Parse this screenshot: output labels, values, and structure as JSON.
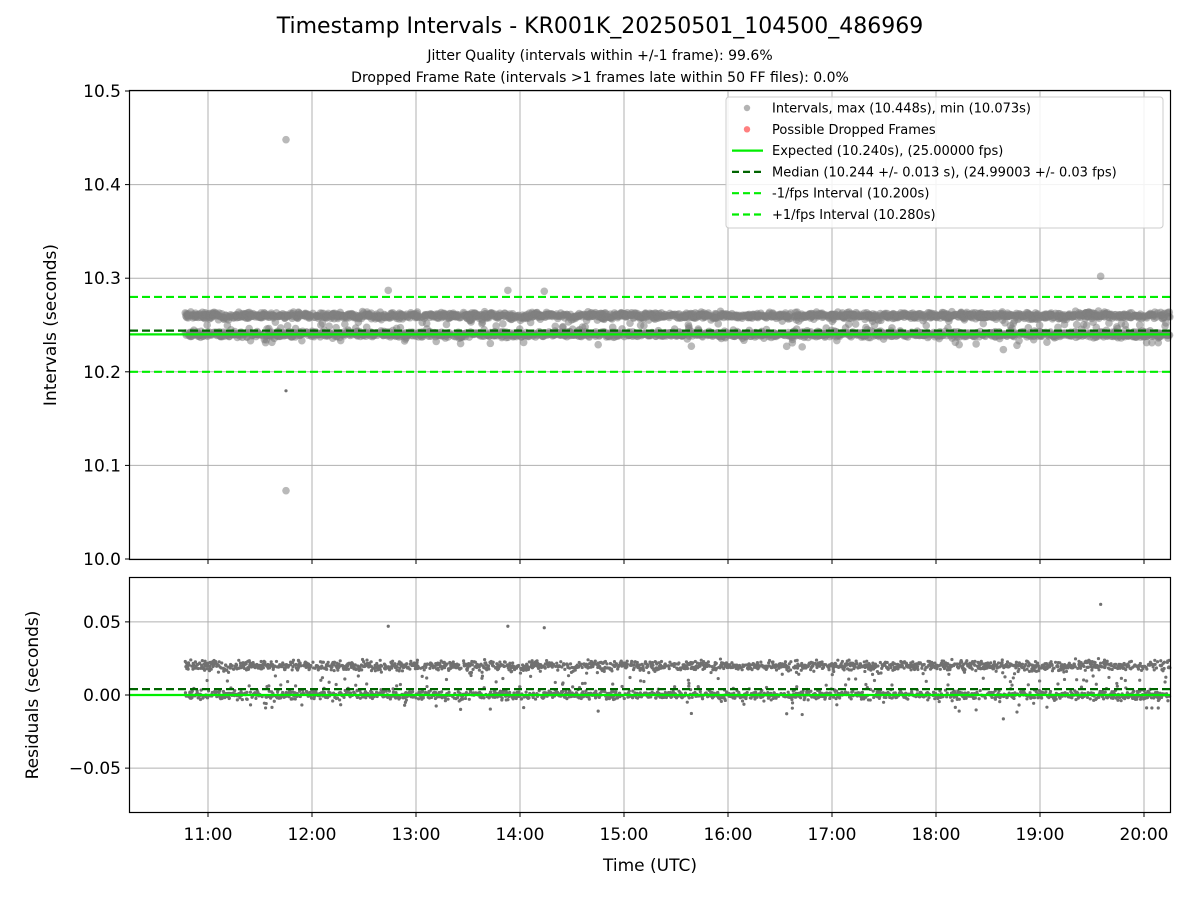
{
  "chart_data": [
    {
      "type": "scatter",
      "title": "Timestamp Intervals - KR001K_20250501_104500_486969",
      "subtitle_lines": [
        "Jitter Quality (intervals within +/-1 frame): 99.6%",
        "Dropped Frame Rate (intervals >1 frames late within 50 FF files): 0.0%"
      ],
      "xlabel": "",
      "ylabel": "Intervals (seconds)",
      "xlim_hours": [
        10.25,
        20.25
      ],
      "ylim": [
        10.0,
        10.5
      ],
      "yticks": [
        10.0,
        10.1,
        10.2,
        10.3,
        10.4,
        10.5
      ],
      "ytick_labels": [
        "10.0",
        "10.1",
        "10.2",
        "10.3",
        "10.4",
        "10.5"
      ],
      "grid": true,
      "legend_position": "top-right",
      "legend": [
        {
          "label": "Intervals, max (10.448s), min (10.073s)",
          "marker": "dot",
          "color": "#999999"
        },
        {
          "label": "Possible Dropped Frames",
          "marker": "dot",
          "color": "#ff5555"
        },
        {
          "label": "Expected (10.240s), (25.00000 fps)",
          "marker": "line",
          "color": "#00ee00"
        },
        {
          "label": "Median (10.244 +/- 0.013 s), (24.99003 +/- 0.03 fps)",
          "marker": "dashed",
          "color": "#006400"
        },
        {
          "label": "-1/fps Interval (10.200s)",
          "marker": "dashed",
          "color": "#00ee00"
        },
        {
          "label": "+1/fps Interval (10.280s)",
          "marker": "dashed",
          "color": "#00ee00"
        }
      ],
      "reference_lines": {
        "expected": 10.24,
        "median": 10.244,
        "minus_one_frame": 10.2,
        "plus_one_frame": 10.28
      },
      "series": [
        {
          "name": "Intervals, max (10.448s), min (10.073s)",
          "time_range_hours": [
            10.78,
            20.25
          ],
          "count": 3300,
          "levels": [
            10.26,
            10.24
          ],
          "notable_points": [
            {
              "time": "11:45",
              "value": 10.448
            },
            {
              "time": "11:45",
              "value": 10.073
            },
            {
              "time": "19:35",
              "value": 10.302
            },
            {
              "time": "12:44",
              "value": 10.287
            },
            {
              "time": "13:53",
              "value": 10.287
            },
            {
              "time": "14:14",
              "value": 10.286
            }
          ]
        }
      ],
      "colors": {
        "points": "#808080",
        "expected": "#00ee00",
        "median": "#006400",
        "bounds": "#00ee00",
        "dropped": "#ff5555"
      }
    },
    {
      "type": "scatter",
      "title": "",
      "xlabel": "Time (UTC)",
      "ylabel": "Residuals (seconds)",
      "xlim_hours": [
        10.25,
        20.25
      ],
      "ylim": [
        -0.08,
        0.08
      ],
      "xticks": [
        "11:00",
        "12:00",
        "13:00",
        "14:00",
        "15:00",
        "16:00",
        "17:00",
        "18:00",
        "19:00",
        "20:00"
      ],
      "yticks": [
        -0.05,
        0.0,
        0.05
      ],
      "ytick_labels": [
        "−0.05",
        "0.00",
        "0.05"
      ],
      "grid": true,
      "reference_lines": {
        "zero": 0.0,
        "median_residual": 0.004
      },
      "series": [
        {
          "time_range_hours": [
            10.78,
            20.25
          ],
          "count": 3300,
          "levels": [
            0.02,
            0.0
          ],
          "notable_points": [
            {
              "time": "19:35",
              "value": 0.063
            },
            {
              "time": "12:44",
              "value": 0.047
            }
          ]
        }
      ],
      "colors": {
        "points": "#707070",
        "zero": "#00ee00",
        "median_residual": "#006400"
      }
    }
  ]
}
